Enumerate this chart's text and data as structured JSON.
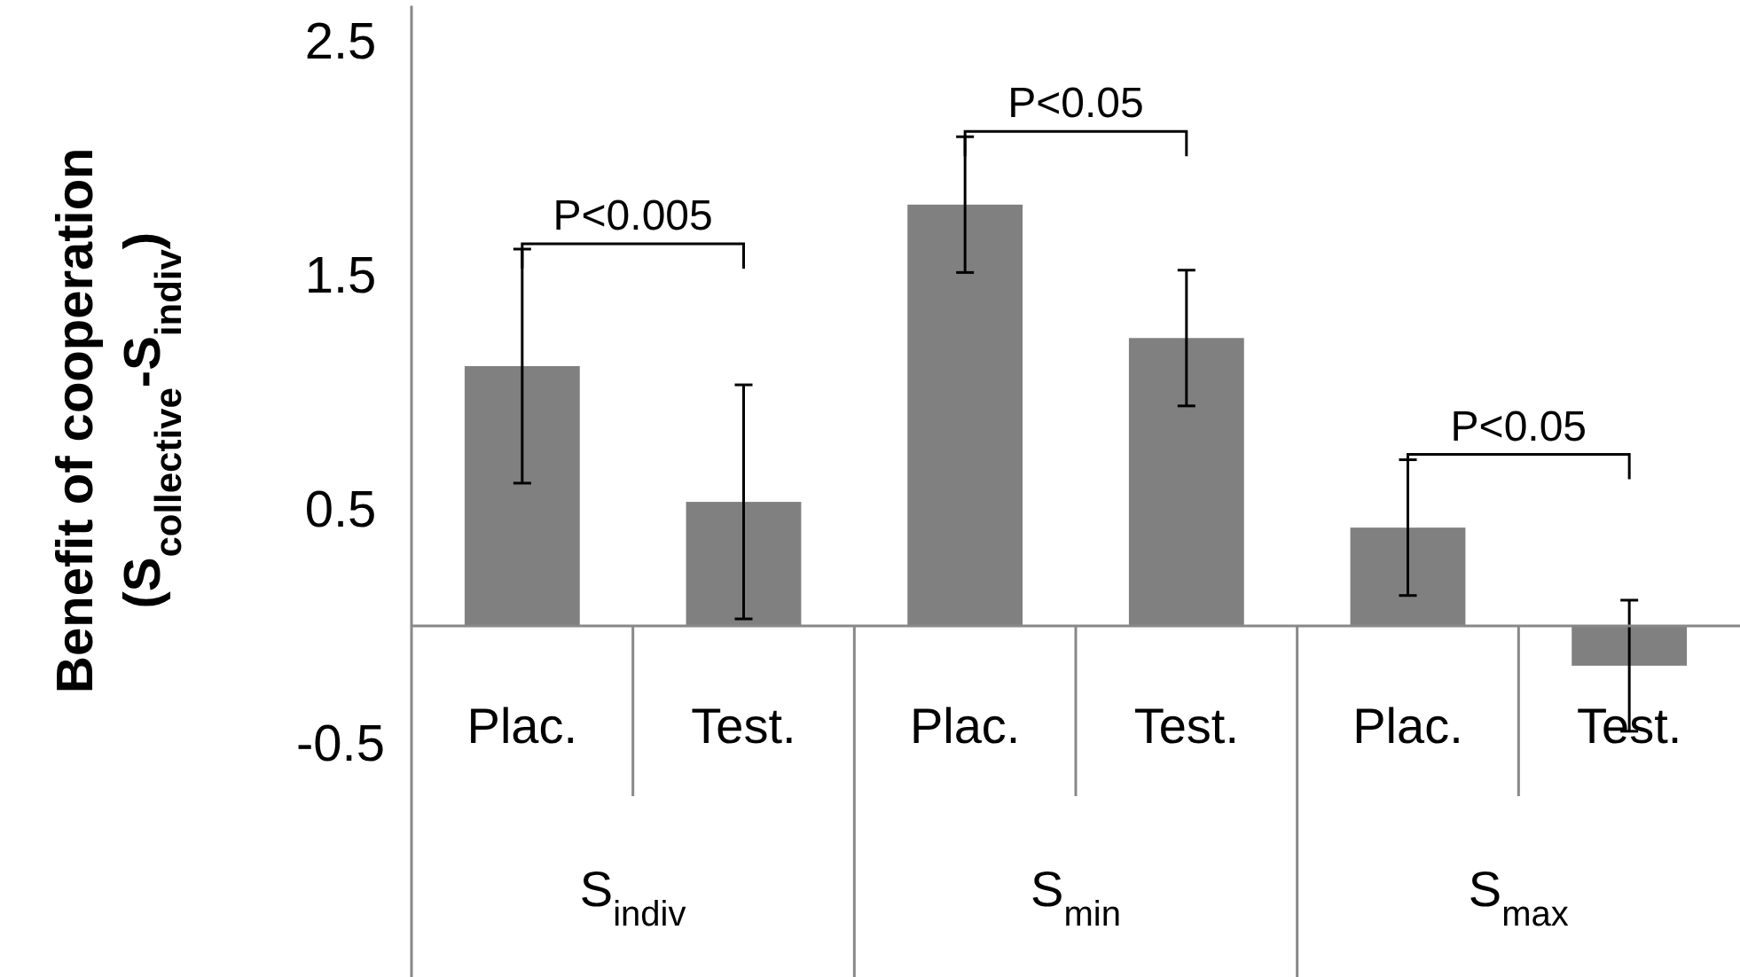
{
  "chart_data": {
    "type": "bar",
    "ylabel": "Benefit of cooperation (S$_{collective}$-S$_{indiv}$)",
    "categories": [
      "Plac.",
      "Test.",
      "Plac.",
      "Test.",
      "Plac.",
      "Test."
    ],
    "values": [
      1.11,
      0.53,
      1.8,
      1.23,
      0.42,
      -0.17
    ],
    "errors": [
      0.5,
      0.5,
      0.29,
      0.29,
      0.29,
      0.28
    ],
    "color": "#808080",
    "ylim": [
      -1.5,
      2.65
    ],
    "yticks": [
      2.5,
      1.5,
      0.5,
      -0.5
    ],
    "grid": false,
    "annotations": [
      "S$_{indiv}$",
      "S$_{min}$",
      "S$_{max}$",
      "P<0.005",
      "P<0.05",
      "P<0.05"
    ]
  }
}
